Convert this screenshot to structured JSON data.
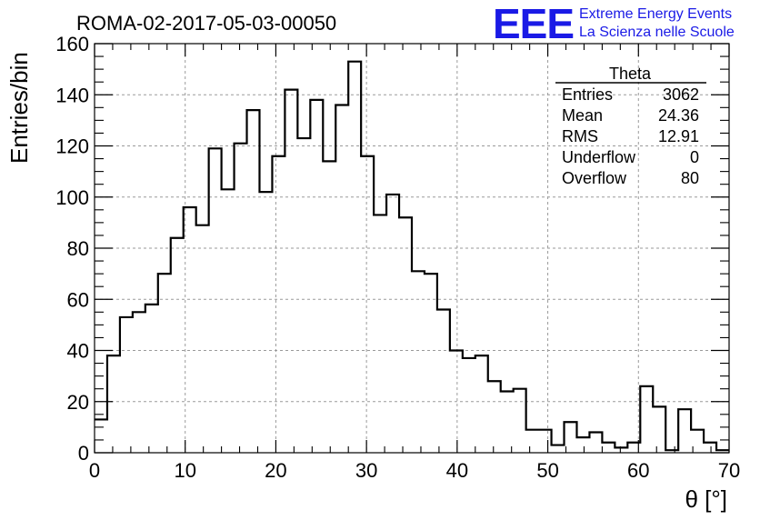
{
  "chart_data": {
    "type": "bar",
    "title": "ROMA-02-2017-05-03-00050",
    "xlabel": "θ [°]",
    "ylabel": "Entries/bin",
    "xlim": [
      0,
      70
    ],
    "ylim": [
      0,
      160
    ],
    "grid": true,
    "bin_edges_start": 0,
    "bin_width": 1.4,
    "values": [
      13,
      38,
      53,
      55,
      58,
      70,
      84,
      96,
      89,
      119,
      103,
      121,
      134,
      102,
      116,
      142,
      123,
      138,
      114,
      136,
      153,
      116,
      93,
      101,
      92,
      71,
      70,
      56,
      40,
      37,
      38,
      28,
      24,
      25,
      9,
      9,
      3,
      12,
      6,
      8,
      4,
      2,
      4,
      26,
      18,
      1,
      17,
      9,
      4,
      1
    ],
    "xticks": [
      "0",
      "10",
      "20",
      "30",
      "40",
      "50",
      "60",
      "70"
    ],
    "yticks": [
      "0",
      "20",
      "40",
      "60",
      "80",
      "100",
      "120",
      "140",
      "160"
    ],
    "stats": {
      "name": "Theta",
      "rows": [
        {
          "label": "Entries",
          "value": "3062"
        },
        {
          "label": "Mean",
          "value": "24.36"
        },
        {
          "label": "RMS",
          "value": "12.91"
        },
        {
          "label": "Underflow",
          "value": "0"
        },
        {
          "label": "Overflow",
          "value": "80"
        }
      ]
    }
  },
  "logo": {
    "mark": "EEE",
    "line1": "Extreme Energy Events",
    "line2": "La Scienza nelle Scuole",
    "color": "#1a1ae6"
  }
}
